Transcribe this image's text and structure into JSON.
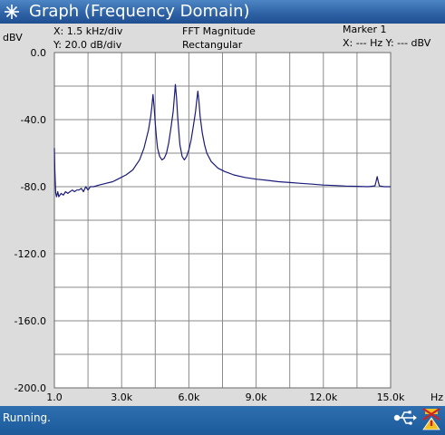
{
  "window": {
    "title": "Graph (Frequency Domain)",
    "icon": "spark-icon"
  },
  "header": {
    "y_unit": "dBV",
    "x_scale": "X: 1.5 kHz/div",
    "y_scale": "Y: 20.0 dB/div",
    "measurement": "FFT Magnitude",
    "window_type": "Rectangular",
    "marker_title": "Marker 1",
    "marker_readout": "X: --- Hz Y: --- dBV"
  },
  "chart_data": {
    "type": "line",
    "title": "",
    "xlabel": "Hz",
    "ylabel": "dBV",
    "xlim": [
      1.0,
      15000
    ],
    "ylim": [
      -200,
      0
    ],
    "x_divisions": 10,
    "y_divisions": 10,
    "grid": true,
    "x_tick_labels": [
      "1.0",
      "3.0k",
      "6.0k",
      "9.0k",
      "12.0k",
      "15.0k"
    ],
    "y_tick_labels": [
      "0.0",
      "-40.0",
      "-80.0",
      "-120.0",
      "-160.0",
      "-200.0"
    ],
    "line_color": "#1a1a7a",
    "series": [
      {
        "x": [
          1,
          20,
          60,
          100,
          150,
          200,
          300,
          400,
          500,
          600,
          700,
          800,
          900,
          1000,
          1100,
          1200,
          1300,
          1400,
          1500,
          1600,
          1750,
          2000,
          2300,
          2600,
          2900,
          3200,
          3500,
          3800,
          4000,
          4200,
          4300,
          4350,
          4400,
          4450,
          4500,
          4550,
          4600,
          4700,
          4800,
          4900,
          5000,
          5100,
          5200,
          5300,
          5350,
          5400,
          5450,
          5500,
          5550,
          5600,
          5700,
          5800,
          5900,
          6000,
          6100,
          6200,
          6300,
          6350,
          6400,
          6450,
          6500,
          6600,
          6700,
          6800,
          7000,
          7300,
          7600,
          8000,
          8500,
          9000,
          9500,
          10000,
          10500,
          11000,
          11500,
          12000,
          12500,
          13000,
          13500,
          14000,
          14300,
          14350,
          14400,
          14450,
          14500,
          14700,
          15000
        ],
        "y": [
          -57,
          -70,
          -84,
          -86,
          -83,
          -86,
          -84,
          -85,
          -83,
          -84,
          -83,
          -82,
          -83,
          -82,
          -82,
          -81,
          -83,
          -80,
          -82,
          -80,
          -80,
          -79,
          -78,
          -77,
          -75,
          -73,
          -70,
          -64,
          -57,
          -46,
          -38,
          -32,
          -25,
          -32,
          -42,
          -50,
          -57,
          -62,
          -64,
          -63,
          -60,
          -54,
          -45,
          -35,
          -27,
          -19,
          -27,
          -38,
          -47,
          -55,
          -62,
          -64,
          -62,
          -58,
          -52,
          -44,
          -35,
          -29,
          -23,
          -29,
          -38,
          -48,
          -55,
          -60,
          -65,
          -69,
          -71,
          -73,
          -74.5,
          -75.5,
          -76.2,
          -77,
          -77.5,
          -78,
          -78.5,
          -79,
          -79.3,
          -79.6,
          -79.8,
          -80,
          -79.5,
          -77,
          -74,
          -77,
          -79.5,
          -80,
          -80
        ]
      }
    ]
  },
  "status": {
    "text": "Running.",
    "icons": [
      "usb-icon",
      "warning-icon"
    ]
  },
  "colors": {
    "titlebar": "#2f63a6",
    "plot_background": "#dcdcdc",
    "grid_background": "#ffffff",
    "grid_line": "#8a8a8a",
    "trace": "#1a1a7a",
    "statusbar": "#1c5a9a"
  }
}
